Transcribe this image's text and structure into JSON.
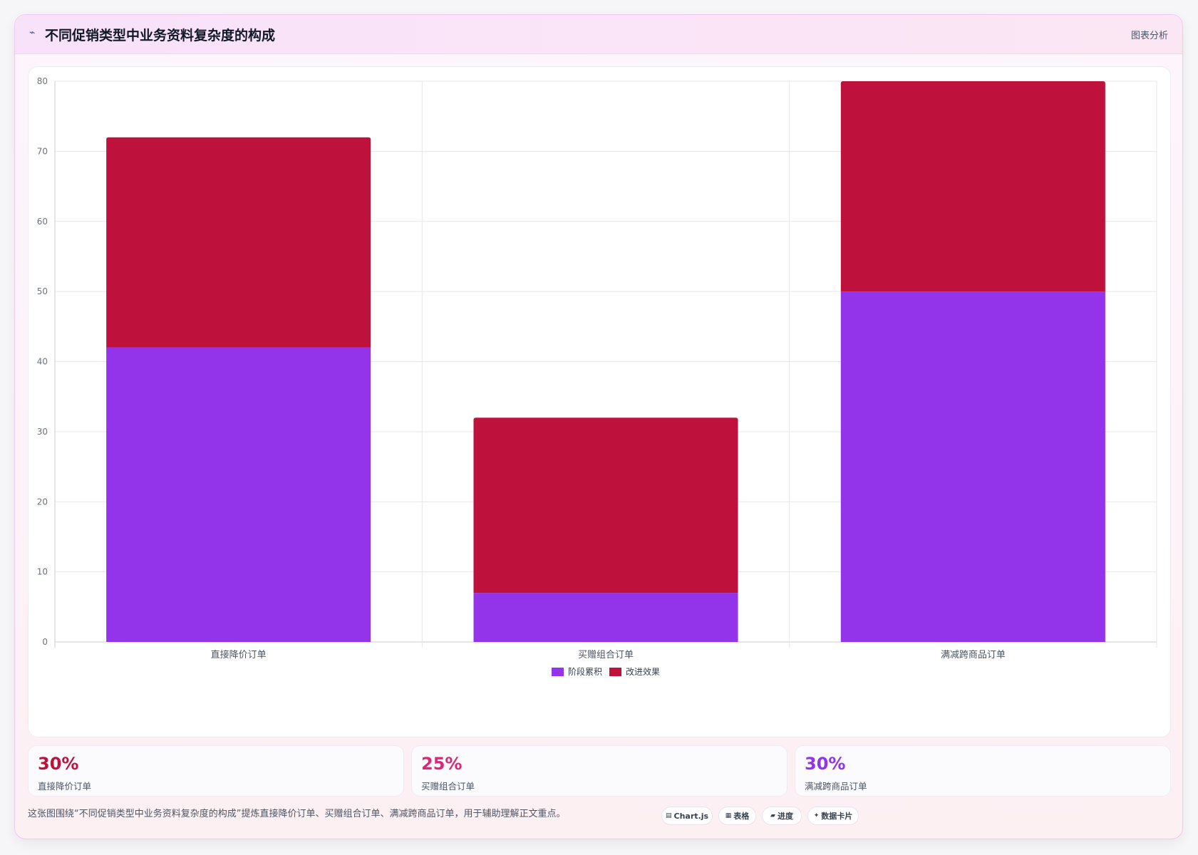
{
  "header": {
    "icon": "trend-line-icon",
    "title": "不同促销类型中业务资料复杂度的构成",
    "tag": "图表分析"
  },
  "chart_data": {
    "type": "bar",
    "stacked": true,
    "categories": [
      "直接降价订单",
      "买赠组合订单",
      "满减跨商品订单"
    ],
    "series": [
      {
        "name": "阶段累积",
        "color": "#9333ea",
        "values": [
          42,
          7,
          50
        ]
      },
      {
        "name": "改进效果",
        "color": "#be123c",
        "values": [
          30,
          25,
          30
        ]
      }
    ],
    "ylim": [
      0,
      80
    ],
    "yticks": [
      0,
      10,
      20,
      30,
      40,
      50,
      60,
      70,
      80
    ],
    "grid": true,
    "legend": "bottom"
  },
  "stats": [
    {
      "value": "30%",
      "label": "直接降价订单",
      "color": "#be123c"
    },
    {
      "value": "25%",
      "label": "买赠组合订单",
      "color": "#db2777"
    },
    {
      "value": "30%",
      "label": "满减跨商品订单",
      "color": "#9333ea"
    }
  ],
  "footer": {
    "text": "这张图围绕“不同促销类型中业务资料复杂度的构成”提炼直接降价订单、买赠组合订单、满减跨商品订单，用于辅助理解正文重点。",
    "chips": [
      {
        "icon": "chart-icon",
        "glyph": "▤",
        "label": "Chart.js"
      },
      {
        "icon": "table-icon",
        "glyph": "▦",
        "label": "表格"
      },
      {
        "icon": "progress-icon",
        "glyph": "▰",
        "label": "进度"
      },
      {
        "icon": "sparkle-icon",
        "glyph": "✦",
        "label": "数据卡片"
      }
    ]
  }
}
